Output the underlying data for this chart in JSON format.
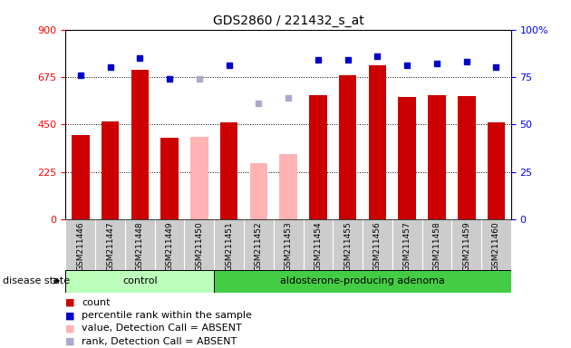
{
  "title": "GDS2860 / 221432_s_at",
  "samples": [
    "GSM211446",
    "GSM211447",
    "GSM211448",
    "GSM211449",
    "GSM211450",
    "GSM211451",
    "GSM211452",
    "GSM211453",
    "GSM211454",
    "GSM211455",
    "GSM211456",
    "GSM211457",
    "GSM211458",
    "GSM211459",
    "GSM211460"
  ],
  "counts": [
    400,
    465,
    710,
    385,
    null,
    460,
    null,
    null,
    590,
    685,
    730,
    580,
    590,
    585,
    460
  ],
  "counts_absent": [
    null,
    null,
    null,
    null,
    390,
    null,
    265,
    310,
    null,
    null,
    null,
    null,
    null,
    null,
    null
  ],
  "percentile_rank": [
    76,
    80,
    85,
    74,
    null,
    81,
    null,
    null,
    84,
    84,
    86,
    81,
    82,
    83,
    80
  ],
  "percentile_rank_absent": [
    null,
    null,
    null,
    null,
    74,
    null,
    61,
    64,
    null,
    null,
    null,
    null,
    null,
    null,
    null
  ],
  "absent_indices": [
    4,
    6,
    7
  ],
  "ylim_left": [
    0,
    900
  ],
  "ylim_right": [
    0,
    100
  ],
  "yticks_left": [
    0,
    225,
    450,
    675,
    900
  ],
  "yticks_right": [
    0,
    25,
    50,
    75,
    100
  ],
  "bar_color_present": "#cc0000",
  "bar_color_absent": "#ffb3b3",
  "dot_color_present": "#0000cc",
  "dot_color_absent": "#aaaacc",
  "bg_color_xtick": "#cccccc",
  "group_control_color": "#bbffbb",
  "group_adenoma_color": "#44cc44",
  "bar_width": 0.6,
  "n_control": 5,
  "n_adenoma": 10
}
